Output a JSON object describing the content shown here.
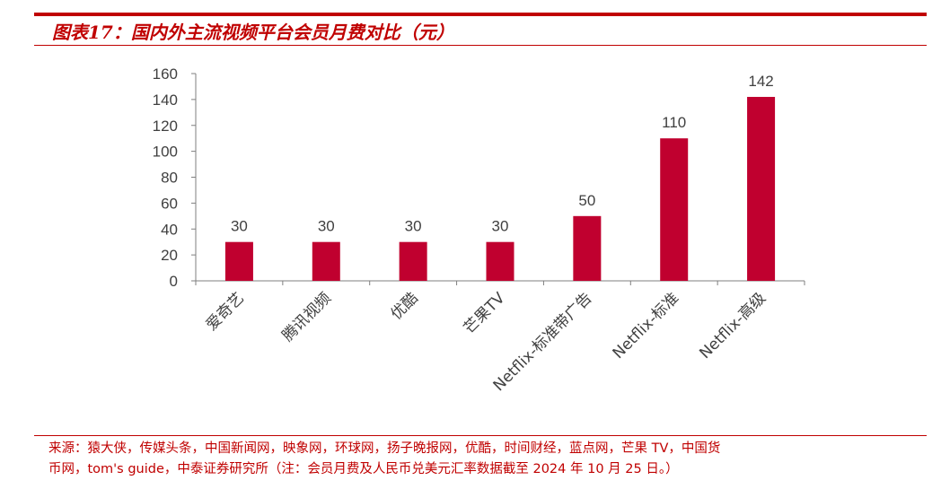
{
  "title": "图表17：国内外主流视频平台会员月费对比（元）",
  "footnote": {
    "line1": "来源：猿大侠，传媒头条，中国新闻网，映象网，环球网，扬子晚报网，优酷，时间财经，蓝点网，芒果 TV，中国货",
    "line2": "币网，tom's guide，中泰证券研究所（注：会员月费及人民币兑美元汇率数据截至 2024 年 10 月 25 日。）"
  },
  "colors": {
    "accent": "#c00000",
    "bar": "#c0002f",
    "axis": "#7f7f7f",
    "text": "#404040"
  },
  "chart_data": {
    "type": "bar",
    "categories": [
      "爱奇艺",
      "腾讯视频",
      "优酷",
      "芒果TV",
      "Netflix-标准带广告",
      "Netflix-标准",
      "Netflix-高级"
    ],
    "values": [
      30,
      30,
      30,
      30,
      50,
      110,
      142
    ],
    "ylim": [
      0,
      160
    ],
    "yticks": [
      0,
      20,
      40,
      60,
      80,
      100,
      120,
      140,
      160
    ],
    "grid": false,
    "legend": "none",
    "data_labels": true
  }
}
